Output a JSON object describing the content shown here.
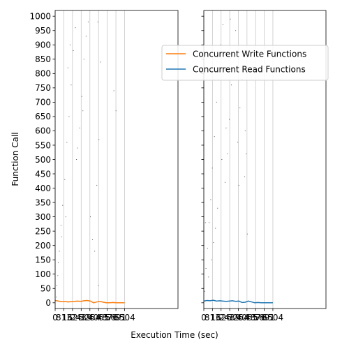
{
  "chart_data": {
    "type": "scatter",
    "xlabel": "Execution Time (sec)",
    "ylabel": "Function Call",
    "xlim": [
      0,
      11504
    ],
    "ylim": [
      -20,
      1020
    ],
    "x_ticks": [
      0,
      813,
      1626,
      2439,
      3254,
      4065,
      4876,
      5691,
      6504
    ],
    "x_tick_labels": [
      "0",
      "813",
      "1626",
      "2439",
      "3254",
      "4065",
      "4876",
      "5691",
      "6504"
    ],
    "y_ticks": [
      0,
      50,
      100,
      150,
      200,
      250,
      300,
      350,
      400,
      450,
      500,
      550,
      600,
      650,
      700,
      750,
      800,
      850,
      900,
      950,
      1000
    ],
    "grid": "vertical",
    "legend": {
      "placement": "upper-right",
      "entries": [
        {
          "label": "Concurrent Write Functions",
          "color": "#ff7f0e"
        },
        {
          "label": "Concurrent Read Functions",
          "color": "#1f77b4"
        }
      ]
    },
    "panels": [
      {
        "series_name": "Concurrent Write Functions",
        "color": "#ff7f0e",
        "concurrency": {
          "x": [
            0,
            300,
            600,
            900,
            1200,
            1500,
            1800,
            2100,
            2400,
            2700,
            3000,
            3300,
            3600,
            3900,
            4200,
            4500,
            4800,
            5100,
            5400,
            5700,
            6000,
            6300,
            6504
          ],
          "y": [
            8,
            6,
            4,
            5,
            3,
            4,
            5,
            6,
            5,
            7,
            8,
            6,
            0,
            3,
            5,
            2,
            0,
            0,
            1,
            0,
            0,
            0,
            0
          ]
        },
        "calls": [
          {
            "x": 100,
            "y": 20
          },
          {
            "x": 250,
            "y": 95
          },
          {
            "x": 400,
            "y": 180
          },
          {
            "x": 550,
            "y": 270
          },
          {
            "x": 700,
            "y": 340
          },
          {
            "x": 900,
            "y": 430
          },
          {
            "x": 1100,
            "y": 560
          },
          {
            "x": 1300,
            "y": 650
          },
          {
            "x": 1500,
            "y": 760
          },
          {
            "x": 1700,
            "y": 880
          },
          {
            "x": 1900,
            "y": 960
          },
          {
            "x": 2100,
            "y": 540
          },
          {
            "x": 2300,
            "y": 610
          },
          {
            "x": 2500,
            "y": 720
          },
          {
            "x": 2700,
            "y": 850
          },
          {
            "x": 2900,
            "y": 930
          },
          {
            "x": 3100,
            "y": 980
          },
          {
            "x": 3300,
            "y": 300
          },
          {
            "x": 3500,
            "y": 220
          },
          {
            "x": 3700,
            "y": 180
          },
          {
            "x": 3900,
            "y": 410
          },
          {
            "x": 4000,
            "y": 980
          },
          {
            "x": 4050,
            "y": 60
          },
          {
            "x": 4100,
            "y": 570
          },
          {
            "x": 4250,
            "y": 840
          },
          {
            "x": 5500,
            "y": 740
          },
          {
            "x": 5700,
            "y": 670
          },
          {
            "x": 1000,
            "y": 300
          },
          {
            "x": 1200,
            "y": 820
          },
          {
            "x": 1400,
            "y": 900
          },
          {
            "x": 2000,
            "y": 500
          },
          {
            "x": 2600,
            "y": 670
          },
          {
            "x": 600,
            "y": 230
          },
          {
            "x": 300,
            "y": 140
          },
          {
            "x": 150,
            "y": 60
          }
        ]
      },
      {
        "series_name": "Concurrent Read Functions",
        "color": "#1f77b4",
        "concurrency": {
          "x": [
            0,
            300,
            600,
            900,
            1200,
            1500,
            1800,
            2100,
            2400,
            2700,
            3000,
            3300,
            3600,
            3900,
            4200,
            4500,
            4800,
            5100,
            5400,
            5700,
            6000,
            6300,
            6504
          ],
          "y": [
            6,
            8,
            7,
            9,
            6,
            7,
            6,
            5,
            6,
            7,
            5,
            6,
            1,
            2,
            6,
            3,
            0,
            1,
            0,
            0,
            0,
            0,
            0
          ]
        },
        "calls": [
          {
            "x": 80,
            "y": 40
          },
          {
            "x": 200,
            "y": 120
          },
          {
            "x": 350,
            "y": 190
          },
          {
            "x": 500,
            "y": 280
          },
          {
            "x": 650,
            "y": 360
          },
          {
            "x": 800,
            "y": 470
          },
          {
            "x": 1000,
            "y": 580
          },
          {
            "x": 1200,
            "y": 700
          },
          {
            "x": 1400,
            "y": 820
          },
          {
            "x": 1600,
            "y": 900
          },
          {
            "x": 1800,
            "y": 970
          },
          {
            "x": 2000,
            "y": 420
          },
          {
            "x": 2200,
            "y": 520
          },
          {
            "x": 2400,
            "y": 640
          },
          {
            "x": 2600,
            "y": 760
          },
          {
            "x": 2800,
            "y": 860
          },
          {
            "x": 3000,
            "y": 950
          },
          {
            "x": 3200,
            "y": 560
          },
          {
            "x": 3400,
            "y": 680
          },
          {
            "x": 3600,
            "y": 780
          },
          {
            "x": 3800,
            "y": 880
          },
          {
            "x": 3900,
            "y": 600
          },
          {
            "x": 4000,
            "y": 520
          },
          {
            "x": 4100,
            "y": 240
          },
          {
            "x": 3850,
            "y": 440
          },
          {
            "x": 1100,
            "y": 260
          },
          {
            "x": 700,
            "y": 150
          },
          {
            "x": 1300,
            "y": 330
          },
          {
            "x": 2100,
            "y": 610
          },
          {
            "x": 2500,
            "y": 990
          },
          {
            "x": 3300,
            "y": 410
          },
          {
            "x": 150,
            "y": 280
          },
          {
            "x": 450,
            "y": 90
          },
          {
            "x": 900,
            "y": 210
          },
          {
            "x": 1700,
            "y": 500
          }
        ]
      }
    ]
  }
}
